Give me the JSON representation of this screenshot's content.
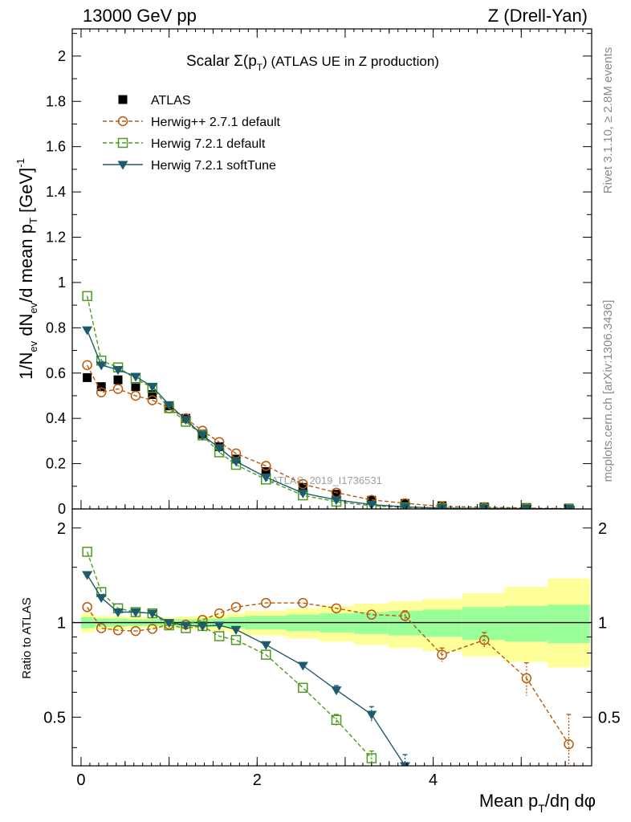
{
  "header": {
    "left": "13000 GeV pp",
    "right": "Z (Drell-Yan)"
  },
  "side_labels": {
    "rivet": "Rivet 3.1.10, ≥ 2.8M events",
    "mcplots": "mcplots.cern.ch [arXiv:1306.3436]"
  },
  "main_title": {
    "prefix": "Scalar Σ(p",
    "sub": "T",
    "suffix": ") (ATLAS UE in Z production)"
  },
  "watermark": "ATLAS_2019_I1736531",
  "y_label_main": "1/N_ev dN_ev/d mean p_T [GeV]^-1",
  "y_label_ratio": "Ratio to ATLAS",
  "x_label": "Mean p_T/dη dφ",
  "colors": {
    "atlas": "#000000",
    "herwigpp": "#b85a0a",
    "herwig721": "#4e9a1e",
    "softtune": "#1d5a6e",
    "band_inner": "#99ff99",
    "band_outer": "#ffff99"
  },
  "legend": [
    {
      "label": "ATLAS",
      "marker": "square-filled"
    },
    {
      "label": "Herwig++ 2.7.1 default",
      "marker": "circle-open"
    },
    {
      "label": "Herwig 7.2.1 default",
      "marker": "square-open"
    },
    {
      "label": "Herwig 7.2.1 softTune",
      "marker": "triangle-down-filled"
    }
  ],
  "chart_data": [
    {
      "type": "scatter",
      "panel": "main",
      "xlim": [
        -0.1,
        5.8
      ],
      "ylim": [
        0,
        2.12
      ],
      "x_ticks": [
        0,
        2,
        4
      ],
      "y_tick_labels": [
        "0",
        "0.2",
        "0.4",
        "0.6",
        "0.8",
        "1",
        "1.2",
        "1.4",
        "1.6",
        "1.8",
        "2"
      ],
      "x": [
        0.07,
        0.23,
        0.42,
        0.62,
        0.81,
        1.0,
        1.19,
        1.38,
        1.57,
        1.76,
        2.1,
        2.52,
        2.9,
        3.3,
        3.68,
        4.1,
        4.58,
        5.06,
        5.54
      ],
      "series": [
        {
          "name": "ATLAS",
          "key": "atlas",
          "values": [
            0.58,
            0.54,
            0.57,
            0.54,
            0.505,
            0.455,
            0.4,
            0.33,
            0.275,
            0.22,
            0.165,
            0.095,
            0.065,
            0.038,
            0.024,
            0.014,
            0.009,
            0.006,
            0.004
          ]
        },
        {
          "name": "Herwig++ 2.7.1 default",
          "key": "herwigpp",
          "values": [
            0.635,
            0.515,
            0.53,
            0.5,
            0.48,
            0.445,
            0.4,
            0.345,
            0.295,
            0.245,
            0.19,
            0.11,
            0.072,
            0.04,
            0.025,
            0.011,
            0.008,
            0.004,
            0.0015
          ]
        },
        {
          "name": "Herwig 7.2.1 default",
          "key": "herwig721",
          "values": [
            0.94,
            0.655,
            0.625,
            0.575,
            0.535,
            0.445,
            0.385,
            0.325,
            0.25,
            0.195,
            0.13,
            0.06,
            0.032,
            0.014,
            0.007,
            0.003,
            0.002,
            0.001,
            0.0005
          ]
        },
        {
          "name": "Herwig 7.2.1 softTune",
          "key": "softtune",
          "values": [
            0.79,
            0.635,
            0.615,
            0.585,
            0.54,
            0.46,
            0.395,
            0.325,
            0.27,
            0.21,
            0.14,
            0.07,
            0.04,
            0.019,
            0.009,
            0.004,
            0.0025,
            0.0015,
            0.0008
          ]
        }
      ]
    },
    {
      "type": "line",
      "panel": "ratio",
      "xlim": [
        -0.1,
        5.8
      ],
      "ylim": [
        0.35,
        2.3
      ],
      "y_ticks": [
        0.5,
        1,
        2
      ],
      "y_tick_labels": [
        "0.5",
        "1",
        "2"
      ],
      "x_tick_labels": [
        "0",
        "2",
        "4"
      ],
      "reference": 1,
      "band_bins": {
        "edges": [
          0.0,
          0.15,
          0.33,
          0.52,
          0.71,
          0.9,
          1.1,
          1.29,
          1.48,
          1.67,
          1.86,
          2.33,
          2.71,
          3.1,
          3.49,
          3.88,
          4.33,
          4.81,
          5.3,
          5.78
        ],
        "inner": [
          0.04,
          0.03,
          0.03,
          0.025,
          0.025,
          0.025,
          0.025,
          0.03,
          0.03,
          0.04,
          0.05,
          0.06,
          0.07,
          0.08,
          0.09,
          0.1,
          0.12,
          0.13,
          0.14
        ],
        "outer_lo": [
          0.07,
          0.05,
          0.05,
          0.04,
          0.04,
          0.04,
          0.045,
          0.05,
          0.06,
          0.07,
          0.09,
          0.11,
          0.13,
          0.15,
          0.17,
          0.19,
          0.22,
          0.25,
          0.28
        ],
        "outer_hi": [
          0.07,
          0.05,
          0.05,
          0.04,
          0.04,
          0.04,
          0.045,
          0.05,
          0.06,
          0.07,
          0.09,
          0.11,
          0.13,
          0.15,
          0.17,
          0.19,
          0.24,
          0.3,
          0.38
        ]
      },
      "series": [
        {
          "name": "Herwig++ 2.7.1 default",
          "key": "herwigpp",
          "x": [
            0.07,
            0.23,
            0.42,
            0.62,
            0.81,
            1.0,
            1.19,
            1.38,
            1.57,
            1.76,
            2.1,
            2.52,
            2.9,
            3.3,
            3.68,
            4.1,
            4.58,
            5.06,
            5.54
          ],
          "values": [
            1.12,
            0.96,
            0.945,
            0.94,
            0.955,
            0.985,
            0.985,
            1.02,
            1.07,
            1.12,
            1.155,
            1.155,
            1.11,
            1.06,
            1.05,
            0.79,
            0.88,
            0.665,
            0.41
          ],
          "err": [
            0,
            0,
            0,
            0,
            0,
            0,
            0,
            0,
            0,
            0,
            0,
            0,
            0,
            0,
            0.04,
            0.04,
            0.05,
            0.08,
            0.1
          ]
        },
        {
          "name": "Herwig 7.2.1 default",
          "key": "herwig721",
          "x": [
            0.07,
            0.23,
            0.42,
            0.62,
            0.81,
            1.0,
            1.19,
            1.38,
            1.57,
            1.76,
            2.1,
            2.52,
            2.9,
            3.3
          ],
          "values": [
            1.68,
            1.25,
            1.11,
            1.08,
            1.07,
            0.98,
            0.96,
            0.975,
            0.905,
            0.88,
            0.79,
            0.62,
            0.49,
            0.37
          ],
          "err": [
            0,
            0,
            0,
            0,
            0,
            0,
            0,
            0,
            0,
            0,
            0,
            0,
            0.02,
            0.02
          ]
        },
        {
          "name": "Herwig 7.2.1 softTune",
          "key": "softtune",
          "x": [
            0.07,
            0.23,
            0.42,
            0.62,
            0.81,
            1.0,
            1.19,
            1.38,
            1.57,
            1.76,
            2.1,
            2.52,
            2.9,
            3.3,
            3.68
          ],
          "values": [
            1.42,
            1.2,
            1.08,
            1.08,
            1.07,
            1.0,
            0.98,
            0.975,
            0.98,
            0.95,
            0.85,
            0.73,
            0.61,
            0.51,
            0.35
          ],
          "err": [
            0,
            0,
            0,
            0,
            0,
            0,
            0,
            0,
            0,
            0,
            0,
            0,
            0.02,
            0.03,
            0.03
          ]
        }
      ]
    }
  ]
}
